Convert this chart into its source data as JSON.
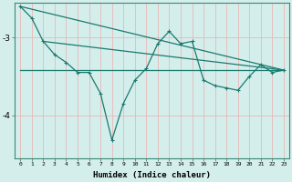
{
  "xlabel": "Humidex (Indice chaleur)",
  "background_color": "#d4eeec",
  "line_color": "#1a7a6e",
  "grid_color": "#e8b8b8",
  "xlim": [
    -0.5,
    23.5
  ],
  "ylim": [
    -4.55,
    -2.55
  ],
  "yticks": [
    -4,
    -3
  ],
  "xticks": [
    0,
    1,
    2,
    3,
    4,
    5,
    6,
    7,
    8,
    9,
    10,
    11,
    12,
    13,
    14,
    15,
    16,
    17,
    18,
    19,
    20,
    21,
    22,
    23
  ],
  "line1_x": [
    0,
    1,
    2,
    3,
    4,
    5,
    6,
    7,
    8,
    9,
    10,
    11,
    12,
    13,
    14,
    15,
    16,
    17,
    18,
    19,
    20,
    21,
    22,
    23
  ],
  "line1_y": [
    -2.6,
    -2.75,
    -3.05,
    -3.22,
    -3.32,
    -3.45,
    -3.45,
    -3.72,
    -4.32,
    -3.85,
    -3.55,
    -3.4,
    -3.08,
    -2.92,
    -3.08,
    -3.05,
    -3.55,
    -3.62,
    -3.65,
    -3.68,
    -3.5,
    -3.35,
    -3.45,
    -3.42
  ],
  "line2_x": [
    0,
    23
  ],
  "line2_y": [
    -2.6,
    -3.42
  ],
  "line3_x": [
    2,
    23
  ],
  "line3_y": [
    -3.05,
    -3.42
  ],
  "line4_x": [
    0,
    23
  ],
  "line4_y": [
    -3.42,
    -3.42
  ]
}
